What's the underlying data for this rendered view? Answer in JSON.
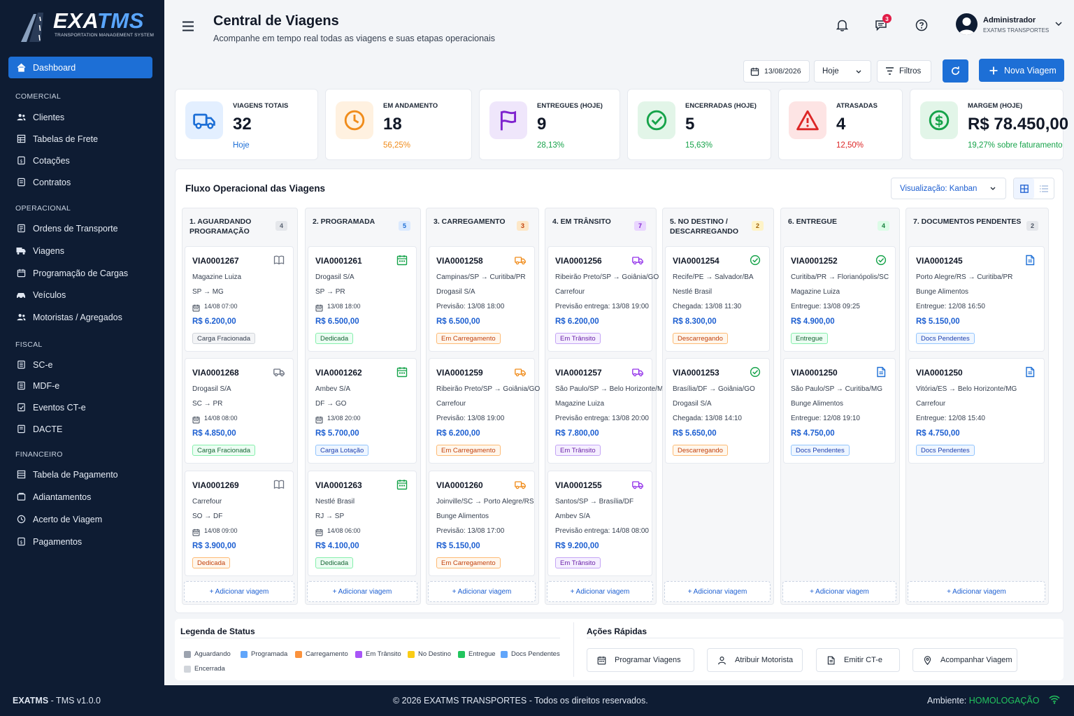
{
  "brand": {
    "name_prefix": "EXA",
    "name_suffix": "TMS",
    "subtitle": "TRANSPORTATION MANAGEMENT SYSTEM"
  },
  "sidebar": {
    "dashboard": "Dashboard",
    "sections": [
      "COMERCIAL",
      "OPERACIONAL",
      "FISCAL",
      "FINANCEIRO"
    ],
    "items": [
      {
        "label": "Clientes",
        "icon": "users-icon"
      },
      {
        "label": "Tabelas de Frete",
        "icon": "table-icon"
      },
      {
        "label": "Cotações",
        "icon": "quote-icon"
      },
      {
        "label": "Contratos",
        "icon": "contract-icon"
      },
      {
        "label": "Ordens de Transporte",
        "icon": "orders-icon"
      },
      {
        "label": "Viagens",
        "icon": "truck-icon"
      },
      {
        "label": "Programação de Cargas",
        "icon": "calendar-icon"
      },
      {
        "label": "Veículos",
        "icon": "car-icon"
      },
      {
        "label": "Motoristas / Agregados",
        "icon": "drivers-icon"
      },
      {
        "label": "SC-e",
        "icon": "doc-icon"
      },
      {
        "label": "MDF-e",
        "icon": "doc-icon"
      },
      {
        "label": "Eventos CT-e",
        "icon": "events-icon"
      },
      {
        "label": "DACTE",
        "icon": "doc-icon"
      },
      {
        "label": "Tabela de Pagamento",
        "icon": "table-icon"
      },
      {
        "label": "Adiantamentos",
        "icon": "advance-icon"
      },
      {
        "label": "Acerto de Viagem",
        "icon": "settle-icon"
      },
      {
        "label": "Pagamentos",
        "icon": "payment-icon"
      }
    ]
  },
  "header": {
    "title": "Central de Viagens",
    "subtitle": "Acompanhe em tempo real todas as viagens e suas etapas operacionais",
    "notifications_badge": "3",
    "user_name": "Administrador",
    "user_company": "EXATMS TRANSPORTES"
  },
  "toolbar": {
    "date": "13/08/2026",
    "period": "Hoje",
    "filters": "Filtros",
    "new_trip": "Nova Viagem"
  },
  "kpis": [
    {
      "label": "VIAGENS TOTAIS",
      "value": "32",
      "sub": "Hoje",
      "color": "#1d6fd6",
      "bg": "#e3efff",
      "icon": "truck-icon"
    },
    {
      "label": "EM ANDAMENTO",
      "value": "18",
      "sub": "56,25%",
      "color": "#f08c1b",
      "bg": "#fff1e0",
      "icon": "clock-icon"
    },
    {
      "label": "ENTREGUES (HOJE)",
      "value": "9",
      "sub": "28,13%",
      "color": "#16a34a",
      "bg": "#efe6fb",
      "icon": "flag-icon"
    },
    {
      "label": "ENCERRADAS (HOJE)",
      "value": "5",
      "sub": "15,63%",
      "color": "#16a34a",
      "bg": "#e2f5e8",
      "icon": "check-circle-icon"
    },
    {
      "label": "ATRASADAS",
      "value": "4",
      "sub": "12,50%",
      "color": "#dc2626",
      "bg": "#fde4e4",
      "icon": "warning-icon"
    },
    {
      "label": "MARGEM (HOJE)",
      "value": "R$ 78.450,00",
      "sub": "19,27% sobre faturamento",
      "color": "#16a34a",
      "bg": "#e2f5e8",
      "icon": "dollar-icon"
    }
  ],
  "board": {
    "title": "Fluxo Operacional das Viagens",
    "view_label": "Visualização: Kanban",
    "add_label": "+ Adicionar viagem",
    "columns": [
      {
        "title": "1. AGUARDANDO PROGRAMAÇÃO",
        "count": "4",
        "count_color": "#5b6472",
        "count_bg": "#e5e7eb",
        "cards": [
          {
            "id": "VIA0001267",
            "l1": "Magazine Luiza",
            "l2": "SP  →  MG",
            "l3": "14/08 07:00",
            "value": "R$ 6.200,00",
            "tag": "Carga Fracionada",
            "tag_style": "gray",
            "icon": "book-icon"
          },
          {
            "id": "VIA0001268",
            "l1": "Drogasil S/A",
            "l2": "SC  →  PR",
            "l3": "14/08 08:00",
            "value": "R$ 4.850,00",
            "tag": "Carga Fracionada",
            "tag_style": "green",
            "icon": "truck-icon"
          },
          {
            "id": "VIA0001269",
            "l1": "Carrefour",
            "l2": "SO  →  DF",
            "l3": "14/08 09:00",
            "value": "R$ 3.900,00",
            "tag": "Dedicada",
            "tag_style": "orange",
            "icon": "book-icon"
          }
        ]
      },
      {
        "title": "2. PROGRAMADA",
        "count": "5",
        "count_color": "#1d6fd6",
        "count_bg": "#dbeafe",
        "cards": [
          {
            "id": "VIA0001261",
            "l1": "Drogasil S/A",
            "l2": "SP  →  PR",
            "l3": "13/08 18:00",
            "value": "R$ 6.500,00",
            "tag": "Dedicada",
            "tag_style": "green",
            "icon": "calendar-icon"
          },
          {
            "id": "VIA0001262",
            "l1": "Ambev S/A",
            "l2": "DF  →  GO",
            "l3": "13/08 20:00",
            "value": "R$ 5.700,00",
            "tag": "Carga Lotação",
            "tag_style": "blue",
            "icon": "calendar-icon"
          },
          {
            "id": "VIA0001263",
            "l1": "Nestlé Brasil",
            "l2": "RJ  →  SP",
            "l3": "14/08 06:00",
            "value": "R$ 4.100,00",
            "tag": "Dedicada",
            "tag_style": "green",
            "icon": "calendar-icon"
          }
        ]
      },
      {
        "title": "3. CARREGAMENTO",
        "count": "3",
        "count_color": "#c2410c",
        "count_bg": "#fde7c7",
        "cards": [
          {
            "id": "VIA0001258",
            "l1": "Campinas/SP → Curitiba/PR",
            "l2": "Drogasil S/A",
            "l3": "Previsão: 13/08 18:00",
            "value": "R$ 6.500,00",
            "tag": "Em Carregamento",
            "tag_style": "orange",
            "icon": "truck-icon"
          },
          {
            "id": "VIA0001259",
            "l1": "Ribeirão Preto/SP → Goiânia/GO",
            "l2": "Carrefour",
            "l3": "Previsão: 13/08 19:00",
            "value": "R$ 6.200,00",
            "tag": "Em Carregamento",
            "tag_style": "orange",
            "icon": "truck-icon"
          },
          {
            "id": "VIA0001260",
            "l1": "Joinville/SC → Porto Alegre/RS",
            "l2": "Bunge Alimentos",
            "l3": "Previsão: 13/08 17:00",
            "value": "R$ 5.150,00",
            "tag": "Em Carregamento",
            "tag_style": "orange",
            "icon": "truck-icon"
          }
        ]
      },
      {
        "title": "4. EM TRÂNSITO",
        "count": "7",
        "count_color": "#7e22ce",
        "count_bg": "#e9d5ff",
        "cards": [
          {
            "id": "VIA0001256",
            "l1": "Ribeirão Preto/SP → Goiânia/GO",
            "l2": "Carrefour",
            "l3": "Previsão entrega: 13/08 19:00",
            "value": "R$ 6.200,00",
            "tag": "Em Trânsito",
            "tag_style": "purple",
            "icon": "truck-icon"
          },
          {
            "id": "VIA0001257",
            "l1": "São Paulo/SP → Belo Horizonte/MG",
            "l2": "Magazine Luiza",
            "l3": "Previsão entrega: 13/08 20:00",
            "value": "R$ 7.800,00",
            "tag": "Em Trânsito",
            "tag_style": "purple",
            "icon": "truck-icon"
          },
          {
            "id": "VIA0001255",
            "l1": "Santos/SP → Brasília/DF",
            "l2": "Ambev S/A",
            "l3": "Previsão entrega: 14/08 08:00",
            "value": "R$ 9.200,00",
            "tag": "Em Trânsito",
            "tag_style": "purple",
            "icon": "truck-icon"
          }
        ]
      },
      {
        "title": "5. NO DESTINO / DESCARREGANDO",
        "count": "2",
        "count_color": "#a16207",
        "count_bg": "#fef3c7",
        "cards": [
          {
            "id": "VIA0001254",
            "l1": "Recife/PE → Salvador/BA",
            "l2": "Nestlé Brasil",
            "l3": "Chegada: 13/08 11:30",
            "value": "R$ 8.300,00",
            "tag": "Descarregando",
            "tag_style": "orange",
            "icon": "check-circle-icon"
          },
          {
            "id": "VIA0001253",
            "l1": "Brasília/DF → Goiânia/GO",
            "l2": "Drogasil S/A",
            "l3": "Chegada: 13/08 14:10",
            "value": "R$ 5.650,00",
            "tag": "Descarregando",
            "tag_style": "orange",
            "icon": "check-circle-icon"
          }
        ]
      },
      {
        "title": "6. ENTREGUE",
        "count": "4",
        "count_color": "#15803d",
        "count_bg": "#dcfce7",
        "cards": [
          {
            "id": "VIA0001252",
            "l1": "Curitiba/PR → Florianópolis/SC",
            "l2": "Magazine Luiza",
            "l3": "Entregue: 13/08 09:25",
            "value": "R$ 4.900,00",
            "tag": "Entregue",
            "tag_style": "green",
            "icon": "check-circle-icon"
          },
          {
            "id": "VIA0001250",
            "l1": "São Paulo/SP → Curitiba/MG",
            "l2": "Bunge Alimentos",
            "l3": "Entregue: 12/08 19:10",
            "value": "R$ 4.750,00",
            "tag": "Docs Pendentes",
            "tag_style": "blue",
            "icon": "document-icon"
          }
        ]
      },
      {
        "title": "7. DOCUMENTOS PENDENTES",
        "count": "2",
        "count_color": "#4b5563",
        "count_bg": "#e5e7eb",
        "cards": [
          {
            "id": "VIA0001245",
            "l1": "Porto Alegre/RS → Curitiba/PR",
            "l2": "Bunge Alimentos",
            "l3": "Entregue: 12/08 16:50",
            "value": "R$ 5.150,00",
            "tag": "Docs Pendentes",
            "tag_style": "blue",
            "icon": "document-icon"
          },
          {
            "id": "VIA0001250",
            "l1": "Vitória/ES → Belo Horizonte/MG",
            "l2": "Carrefour",
            "l3": "Entregue: 12/08 15:40",
            "value": "R$ 4.750,00",
            "tag": "Docs Pendentes",
            "tag_style": "blue",
            "icon": "document-icon"
          }
        ]
      }
    ]
  },
  "legend": {
    "title": "Legenda de Status",
    "items": [
      {
        "label": "Aguardando",
        "color": "#9ca3af"
      },
      {
        "label": "Programada",
        "color": "#60a5fa"
      },
      {
        "label": "Carregamento",
        "color": "#fb923c"
      },
      {
        "label": "Em Trânsito",
        "color": "#a855f7"
      },
      {
        "label": "No Destino",
        "color": "#facc15"
      },
      {
        "label": "Entregue",
        "color": "#22c55e"
      },
      {
        "label": "Docs Pendentes",
        "color": "#60a5fa"
      },
      {
        "label": "Encerrada",
        "color": "#d1d5db"
      }
    ]
  },
  "quick_actions": {
    "title": "Ações Rápidas",
    "items": [
      {
        "label": "Programar Viagens",
        "icon": "calendar-icon"
      },
      {
        "label": "Atribuir Motorista",
        "icon": "user-icon"
      },
      {
        "label": "Emitir CT-e",
        "icon": "document-icon"
      },
      {
        "label": "Acompanhar Viagem",
        "icon": "pin-icon"
      }
    ]
  },
  "footer": {
    "app": "EXATMS",
    "version": " - TMS v1.0.0",
    "copyright": "© 2026 EXATMS TRANSPORTES - Todos os direitos reservados.",
    "env_label": "Ambiente: ",
    "env_value": "HOMOLOGAÇÃO"
  }
}
